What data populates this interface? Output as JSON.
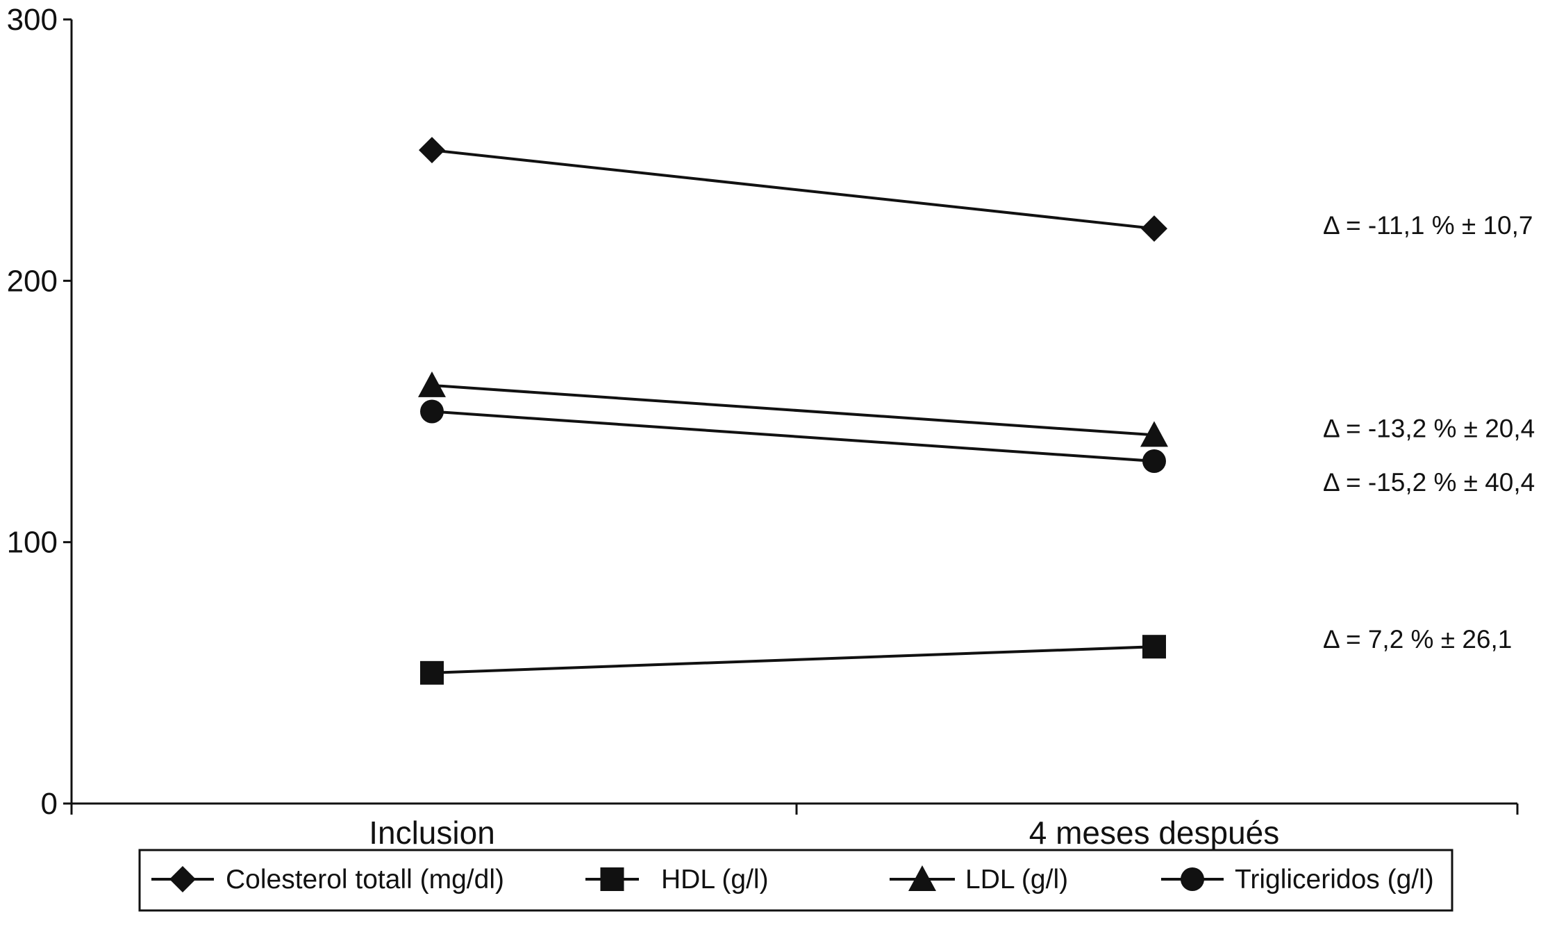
{
  "chart_data": {
    "type": "line",
    "title": "",
    "xlabel": "",
    "ylabel": "",
    "categories": [
      "Inclusion",
      "4 meses después"
    ],
    "ylim": [
      0,
      300
    ],
    "yticks": [
      "0",
      "100",
      "200",
      "300"
    ],
    "grid": false,
    "legend_position": "bottom",
    "series": [
      {
        "name": "Colesterol totall (mg/dl)",
        "marker": "diamond",
        "values": [
          250,
          220
        ]
      },
      {
        "name": "HDL  (g/l)",
        "marker": "square",
        "values": [
          50,
          60
        ]
      },
      {
        "name": "LDL  (g/l)",
        "marker": "triangle",
        "values": [
          160,
          141
        ]
      },
      {
        "name": "Trigliceridos (g/l)",
        "marker": "circle",
        "values": [
          150,
          131
        ]
      }
    ],
    "annotations": [
      {
        "text": "Δ = -11,1 % ± 10,7",
        "series": 0
      },
      {
        "text": "Δ = -13,2 % ± 20,4",
        "series": 2
      },
      {
        "text": "Δ = -15,2 % ± 40,4",
        "series": 3
      },
      {
        "text": "Δ = 7,2 % ± 26,1",
        "series": 1
      }
    ],
    "colors": {
      "line": "#111111",
      "background": "#ffffff"
    }
  }
}
